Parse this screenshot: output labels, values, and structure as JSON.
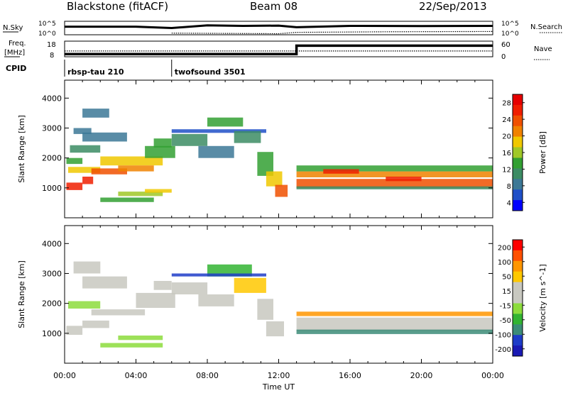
{
  "header": {
    "station": "Blackstone (fitACF)",
    "beam": "Beam 08",
    "date": "22/Sep/2013"
  },
  "colors": {
    "power_scale": [
      "#0000ff",
      "#2050c8",
      "#3c7896",
      "#3c8c64",
      "#32a032",
      "#a0c828",
      "#f0c800",
      "#f08200",
      "#f05000",
      "#f01e00",
      "#e60000"
    ],
    "velocity_scale": [
      "#1a1ab4",
      "#1e3cc8",
      "#3c8c78",
      "#32b432",
      "#8cdc3c",
      "#c8c8c0",
      "#c8c8c0",
      "#ffc800",
      "#ff9600",
      "#ff5000",
      "#ff0000"
    ]
  },
  "chart_data": [
    {
      "type": "line",
      "panel": "noise",
      "left_label": "N.Sky",
      "right_label": "N.Search",
      "left_ticks": [
        "10^5",
        "10^0"
      ],
      "right_ticks": [
        "10^5",
        "10^0"
      ],
      "series": [
        {
          "style": "solid",
          "x": [
            0.0,
            2.0,
            4.0,
            6.0,
            8.0,
            10.0,
            12.0,
            13.0,
            16.0,
            20.0,
            24.0
          ],
          "values": [
            3.0,
            3.0,
            3.0,
            2.5,
            3.5,
            3.3,
            3.4,
            2.8,
            3.3,
            3.2,
            3.3
          ]
        },
        {
          "style": "dotted",
          "x": [
            6.0,
            9.0,
            12.0,
            13.0,
            18.0,
            24.0
          ],
          "values": [
            0.6,
            0.5,
            0.4,
            0.9,
            1.1,
            1.2
          ]
        }
      ]
    },
    {
      "type": "line",
      "panel": "frequency",
      "left_label": "Freq.",
      "left_unit": "[MHz]",
      "right_label": "Nave",
      "left_ticks": [
        "18",
        "8"
      ],
      "right_ticks": [
        "60",
        "0"
      ],
      "series": [
        {
          "style": "solid",
          "x": [
            0.0,
            13.0,
            13.0,
            24.0
          ],
          "values": [
            8.0,
            8.0,
            14.5,
            14.5
          ]
        },
        {
          "style": "dotted",
          "x": [
            0.0,
            13.0,
            24.0
          ],
          "values": [
            22,
            22,
            22
          ]
        }
      ]
    },
    {
      "type": "table",
      "panel": "cpid",
      "label": "CPID",
      "segments": [
        {
          "start": 0.0,
          "name": "rbsp-tau 210"
        },
        {
          "start": 6.0,
          "name": "twofsound 3501"
        }
      ]
    },
    {
      "type": "heatmap",
      "panel": "power",
      "ylabel": "Slant Range [km]",
      "colorbar_label": "Power [dB]",
      "colorbar_ticks": [
        "28",
        "24",
        "20",
        "16",
        "12",
        "8",
        "4"
      ],
      "colorbar_range": [
        0,
        32
      ],
      "y_ticks": [
        "1000",
        "2000",
        "3000",
        "4000"
      ],
      "ylim": [
        0,
        4600
      ],
      "xlim": [
        0,
        24
      ],
      "cells": [
        [
          0.1,
          1.0,
          1050,
          250,
          28
        ],
        [
          1.0,
          1.6,
          1250,
          250,
          28
        ],
        [
          0.2,
          2.0,
          1600,
          200,
          20
        ],
        [
          1.5,
          3.5,
          1550,
          200,
          24
        ],
        [
          2.0,
          5.5,
          1900,
          300,
          18
        ],
        [
          3.0,
          5.0,
          1650,
          200,
          22
        ],
        [
          0.1,
          1.0,
          1900,
          200,
          12
        ],
        [
          0.3,
          2.0,
          2300,
          250,
          10
        ],
        [
          1.0,
          3.5,
          2700,
          300,
          8
        ],
        [
          4.5,
          6.2,
          2200,
          400,
          14
        ],
        [
          5.0,
          6.0,
          2500,
          300,
          12
        ],
        [
          2.0,
          5.0,
          600,
          150,
          12
        ],
        [
          3.0,
          5.5,
          800,
          150,
          16
        ],
        [
          4.5,
          6.0,
          900,
          120,
          20
        ],
        [
          0.5,
          1.5,
          2900,
          200,
          6
        ],
        [
          1.0,
          2.5,
          3500,
          300,
          6
        ],
        [
          6.0,
          11.3,
          2900,
          120,
          4
        ],
        [
          6.0,
          8.0,
          2600,
          400,
          10
        ],
        [
          8.0,
          10.0,
          3200,
          300,
          12
        ],
        [
          7.5,
          9.5,
          2200,
          400,
          8
        ],
        [
          9.5,
          11.0,
          2700,
          400,
          10
        ],
        [
          10.8,
          11.7,
          1800,
          800,
          14
        ],
        [
          11.3,
          12.2,
          1300,
          500,
          20
        ],
        [
          11.8,
          12.5,
          900,
          400,
          26
        ],
        [
          13.0,
          24.0,
          1150,
          300,
          26
        ],
        [
          13.0,
          24.0,
          1450,
          200,
          22
        ],
        [
          13.0,
          24.0,
          1650,
          200,
          12
        ],
        [
          13.0,
          24.0,
          1000,
          100,
          10
        ],
        [
          14.5,
          16.5,
          1550,
          150,
          28
        ],
        [
          18.0,
          20.0,
          1300,
          150,
          28
        ]
      ]
    },
    {
      "type": "heatmap",
      "panel": "velocity",
      "ylabel": "Slant Range [km]",
      "colorbar_label": "Velocity [m s^-1]",
      "colorbar_ticks": [
        "200",
        "100",
        "50",
        "15",
        "-15",
        "-50",
        "-100",
        "-200"
      ],
      "colorbar_range": [
        -250,
        250
      ],
      "y_ticks": [
        "1000",
        "2000",
        "3000",
        "4000"
      ],
      "ylim": [
        0,
        4600
      ],
      "xlim": [
        0,
        24
      ],
      "xlabel": "Time UT",
      "x_ticks": [
        "00:00",
        "04:00",
        "08:00",
        "12:00",
        "16:00",
        "20:00",
        "00:00"
      ],
      "cells": [
        [
          0.1,
          1.0,
          1100,
          300,
          0
        ],
        [
          1.0,
          2.5,
          1300,
          250,
          0
        ],
        [
          1.5,
          4.5,
          1700,
          200,
          0
        ],
        [
          4.0,
          6.2,
          2100,
          500,
          0
        ],
        [
          5.0,
          6.0,
          2600,
          300,
          0
        ],
        [
          0.2,
          2.0,
          1950,
          250,
          -30
        ],
        [
          2.0,
          5.5,
          600,
          150,
          -60
        ],
        [
          3.0,
          5.5,
          850,
          150,
          -40
        ],
        [
          1.0,
          3.5,
          2700,
          400,
          30
        ],
        [
          6.0,
          8.0,
          2500,
          400,
          60
        ],
        [
          8.0,
          10.5,
          3100,
          400,
          -80
        ],
        [
          7.5,
          9.5,
          2100,
          400,
          40
        ],
        [
          9.5,
          11.3,
          2600,
          500,
          100
        ],
        [
          10.8,
          11.7,
          1800,
          700,
          30
        ],
        [
          11.3,
          12.3,
          1150,
          500,
          0
        ],
        [
          13.0,
          24.0,
          1300,
          450,
          0
        ],
        [
          13.0,
          24.0,
          1050,
          150,
          -120
        ],
        [
          13.0,
          24.0,
          1650,
          150,
          150
        ],
        [
          6.0,
          11.3,
          2950,
          100,
          -200
        ],
        [
          0.5,
          2.0,
          3200,
          400,
          40
        ]
      ]
    }
  ]
}
